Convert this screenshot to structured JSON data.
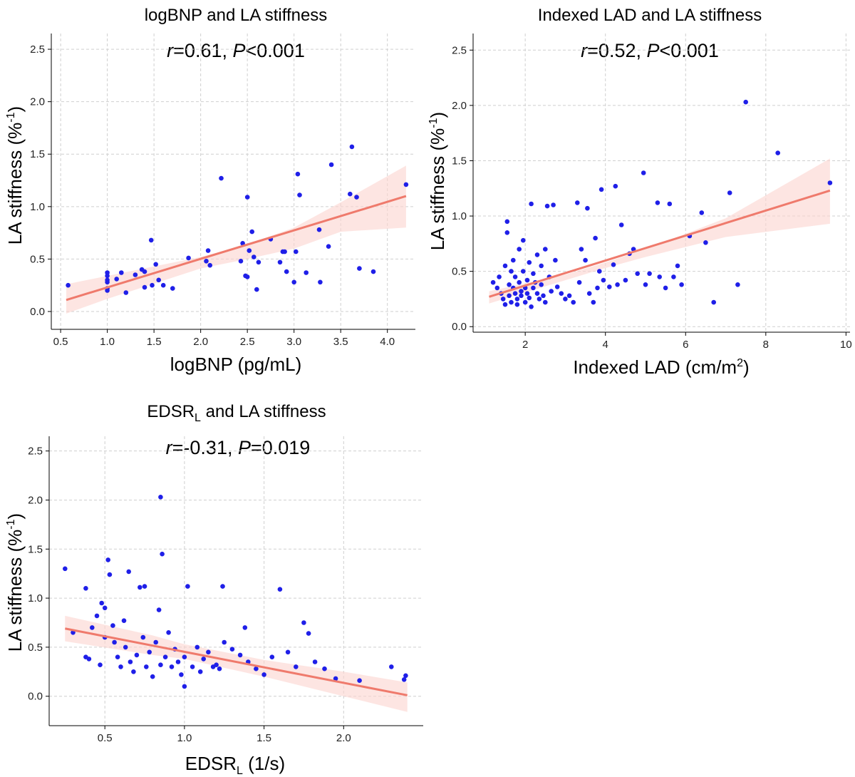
{
  "chart_data": [
    {
      "type": "scatter",
      "title": "logBNP and LA stiffness",
      "stat_r": "r",
      "stat_r_value": "=0.61, ",
      "stat_p": "P",
      "stat_p_value": "<0.001",
      "xlabel": "logBNP (pg/mL)",
      "ylabel_main": "LA stiffness (%",
      "ylabel_sup": "-1",
      "ylabel_end": ")",
      "xlim": [
        0.4,
        4.3
      ],
      "ylim": [
        -0.17,
        2.65
      ],
      "xticks": [
        0.5,
        1.0,
        1.5,
        2.0,
        2.5,
        3.0,
        3.5,
        4.0
      ],
      "xtick_labels": [
        "0.5",
        "1.0",
        "1.5",
        "2.0",
        "2.5",
        "3.0",
        "3.5",
        "4.0"
      ],
      "yticks": [
        0.0,
        0.5,
        1.0,
        1.5,
        2.0,
        2.5
      ],
      "ytick_labels": [
        "0.0",
        "0.5",
        "1.0",
        "1.5",
        "2.0",
        "2.5"
      ],
      "grid": true,
      "fit": {
        "x0": 0.56,
        "y0": 0.11,
        "x1": 4.2,
        "y1": 1.1
      },
      "band": {
        "upper": [
          [
            0.56,
            0.26
          ],
          [
            2.0,
            0.52
          ],
          [
            2.5,
            0.64
          ],
          [
            3.0,
            0.8
          ],
          [
            3.5,
            1.04
          ],
          [
            4.2,
            1.39
          ]
        ],
        "lower": [
          [
            0.56,
            -0.02
          ],
          [
            1.0,
            0.12
          ],
          [
            2.0,
            0.41
          ],
          [
            2.5,
            0.5
          ],
          [
            3.0,
            0.6
          ],
          [
            3.5,
            0.76
          ],
          [
            4.2,
            0.8
          ]
        ]
      },
      "points": [
        [
          0.58,
          0.25
        ],
        [
          1.0,
          0.37
        ],
        [
          1.0,
          0.34
        ],
        [
          1.0,
          0.3
        ],
        [
          1.0,
          0.28
        ],
        [
          1.0,
          0.2
        ],
        [
          1.0,
          0.22
        ],
        [
          1.1,
          0.31
        ],
        [
          1.15,
          0.37
        ],
        [
          1.2,
          0.18
        ],
        [
          1.3,
          0.35
        ],
        [
          1.37,
          0.4
        ],
        [
          1.4,
          0.38
        ],
        [
          1.4,
          0.23
        ],
        [
          1.47,
          0.68
        ],
        [
          1.48,
          0.25
        ],
        [
          1.52,
          0.45
        ],
        [
          1.55,
          0.3
        ],
        [
          1.6,
          0.25
        ],
        [
          1.7,
          0.22
        ],
        [
          1.87,
          0.51
        ],
        [
          2.06,
          0.48
        ],
        [
          2.08,
          0.58
        ],
        [
          2.1,
          0.44
        ],
        [
          2.22,
          1.27
        ],
        [
          2.43,
          0.48
        ],
        [
          2.45,
          0.65
        ],
        [
          2.48,
          0.34
        ],
        [
          2.5,
          1.09
        ],
        [
          2.5,
          0.33
        ],
        [
          2.52,
          0.58
        ],
        [
          2.55,
          0.76
        ],
        [
          2.57,
          0.52
        ],
        [
          2.6,
          0.21
        ],
        [
          2.62,
          0.47
        ],
        [
          2.75,
          0.69
        ],
        [
          2.85,
          0.47
        ],
        [
          2.88,
          0.57
        ],
        [
          2.9,
          0.57
        ],
        [
          2.92,
          0.38
        ],
        [
          3.0,
          0.28
        ],
        [
          3.02,
          0.57
        ],
        [
          3.04,
          1.31
        ],
        [
          3.06,
          1.11
        ],
        [
          3.13,
          0.37
        ],
        [
          3.27,
          0.78
        ],
        [
          3.28,
          0.28
        ],
        [
          3.37,
          0.62
        ],
        [
          3.4,
          1.4
        ],
        [
          3.6,
          1.12
        ],
        [
          3.62,
          1.57
        ],
        [
          3.67,
          1.09
        ],
        [
          3.7,
          0.41
        ],
        [
          3.85,
          0.38
        ],
        [
          4.2,
          1.21
        ]
      ]
    },
    {
      "type": "scatter",
      "title": "Indexed LAD and LA stiffness",
      "stat_r": "r",
      "stat_r_value": "=0.52, ",
      "stat_p": "P",
      "stat_p_value": "<0.001",
      "xlabel": "Indexed LAD (cm/m",
      "xlabel_sup": "2",
      "xlabel_end": ")",
      "ylabel_main": "LA stiffness (%",
      "ylabel_sup": "-1",
      "ylabel_end": ")",
      "xlim": [
        0.7,
        10.1
      ],
      "ylim": [
        -0.05,
        2.65
      ],
      "xticks": [
        2,
        4,
        6,
        8,
        10
      ],
      "xtick_labels": [
        "2",
        "4",
        "6",
        "8",
        "10"
      ],
      "yticks": [
        0.0,
        0.5,
        1.0,
        1.5,
        2.0,
        2.5
      ],
      "ytick_labels": [
        "0.0",
        "0.5",
        "1.0",
        "1.5",
        "2.0",
        "2.5"
      ],
      "grid": true,
      "fit": {
        "x0": 1.1,
        "y0": 0.27,
        "x1": 9.6,
        "y1": 1.23
      },
      "band": {
        "upper": [
          [
            1.1,
            0.32
          ],
          [
            3.0,
            0.47
          ],
          [
            4.0,
            0.58
          ],
          [
            5.0,
            0.7
          ],
          [
            7.0,
            0.98
          ],
          [
            9.6,
            1.52
          ]
        ],
        "lower": [
          [
            1.1,
            0.21
          ],
          [
            3.0,
            0.42
          ],
          [
            4.0,
            0.53
          ],
          [
            5.0,
            0.63
          ],
          [
            7.0,
            0.81
          ],
          [
            9.6,
            0.93
          ]
        ]
      },
      "points": [
        [
          1.2,
          0.4
        ],
        [
          1.3,
          0.35
        ],
        [
          1.35,
          0.45
        ],
        [
          1.4,
          0.3
        ],
        [
          1.45,
          0.25
        ],
        [
          1.5,
          0.2
        ],
        [
          1.5,
          0.55
        ],
        [
          1.55,
          0.85
        ],
        [
          1.55,
          0.95
        ],
        [
          1.6,
          0.38
        ],
        [
          1.6,
          0.28
        ],
        [
          1.65,
          0.5
        ],
        [
          1.65,
          0.22
        ],
        [
          1.7,
          0.6
        ],
        [
          1.7,
          0.35
        ],
        [
          1.75,
          0.3
        ],
        [
          1.75,
          0.45
        ],
        [
          1.8,
          0.25
        ],
        [
          1.8,
          0.2
        ],
        [
          1.85,
          0.4
        ],
        [
          1.85,
          0.7
        ],
        [
          1.9,
          0.32
        ],
        [
          1.9,
          0.28
        ],
        [
          1.95,
          0.78
        ],
        [
          1.95,
          0.5
        ],
        [
          2.0,
          0.35
        ],
        [
          2.0,
          0.22
        ],
        [
          2.05,
          0.3
        ],
        [
          2.05,
          0.42
        ],
        [
          2.1,
          0.26
        ],
        [
          2.1,
          0.58
        ],
        [
          2.15,
          1.11
        ],
        [
          2.15,
          0.18
        ],
        [
          2.2,
          0.35
        ],
        [
          2.2,
          0.48
        ],
        [
          2.25,
          0.4
        ],
        [
          2.3,
          0.3
        ],
        [
          2.3,
          0.65
        ],
        [
          2.35,
          0.25
        ],
        [
          2.4,
          0.38
        ],
        [
          2.4,
          0.55
        ],
        [
          2.45,
          0.28
        ],
        [
          2.5,
          0.7
        ],
        [
          2.5,
          0.22
        ],
        [
          2.55,
          1.09
        ],
        [
          2.6,
          0.45
        ],
        [
          2.65,
          0.32
        ],
        [
          2.7,
          1.1
        ],
        [
          2.75,
          0.6
        ],
        [
          2.8,
          0.36
        ],
        [
          2.9,
          0.3
        ],
        [
          3.0,
          0.25
        ],
        [
          3.1,
          0.28
        ],
        [
          3.2,
          0.22
        ],
        [
          3.3,
          1.12
        ],
        [
          3.35,
          0.4
        ],
        [
          3.4,
          0.7
        ],
        [
          3.5,
          0.6
        ],
        [
          3.55,
          1.07
        ],
        [
          3.6,
          0.3
        ],
        [
          3.7,
          0.22
        ],
        [
          3.75,
          0.8
        ],
        [
          3.8,
          0.35
        ],
        [
          3.85,
          0.5
        ],
        [
          3.9,
          1.24
        ],
        [
          3.95,
          0.42
        ],
        [
          4.1,
          0.36
        ],
        [
          4.2,
          0.56
        ],
        [
          4.25,
          1.27
        ],
        [
          4.3,
          0.38
        ],
        [
          4.4,
          0.92
        ],
        [
          4.5,
          0.42
        ],
        [
          4.6,
          0.66
        ],
        [
          4.7,
          0.7
        ],
        [
          4.8,
          0.48
        ],
        [
          4.95,
          1.39
        ],
        [
          5.0,
          0.38
        ],
        [
          5.1,
          0.48
        ],
        [
          5.3,
          1.12
        ],
        [
          5.35,
          0.45
        ],
        [
          5.5,
          0.35
        ],
        [
          5.6,
          1.11
        ],
        [
          5.7,
          0.45
        ],
        [
          5.8,
          0.55
        ],
        [
          5.9,
          0.38
        ],
        [
          6.1,
          0.82
        ],
        [
          6.4,
          1.03
        ],
        [
          6.5,
          0.76
        ],
        [
          6.7,
          0.22
        ],
        [
          7.1,
          1.21
        ],
        [
          7.3,
          0.38
        ],
        [
          7.5,
          2.03
        ],
        [
          8.3,
          1.57
        ],
        [
          9.6,
          1.3
        ]
      ]
    },
    {
      "type": "scatter",
      "title": "EDSR",
      "title_sub": "L",
      "title_end": " and LA stiffness",
      "stat_r": "r",
      "stat_r_value": "=-0.31, ",
      "stat_p": "P",
      "stat_p_value": "=0.019",
      "xlabel": "EDSR",
      "xlabel_sub": "L",
      "xlabel_end": " (1/s)",
      "ylabel_main": "LA stiffness (%",
      "ylabel_sup": "-1",
      "ylabel_end": ")",
      "xlim": [
        0.15,
        2.5
      ],
      "ylim": [
        -0.3,
        2.65
      ],
      "xticks": [
        0.5,
        1.0,
        1.5,
        2.0
      ],
      "xtick_labels": [
        "0.5",
        "1.0",
        "1.5",
        "2.0"
      ],
      "yticks": [
        0.0,
        0.5,
        1.0,
        1.5,
        2.0,
        2.5
      ],
      "ytick_labels": [
        "0.0",
        "0.5",
        "1.0",
        "1.5",
        "2.0",
        "2.5"
      ],
      "grid": true,
      "fit": {
        "x0": 0.25,
        "y0": 0.69,
        "x1": 2.4,
        "y1": 0.01
      },
      "band": {
        "upper": [
          [
            0.25,
            0.82
          ],
          [
            0.8,
            0.62
          ],
          [
            1.0,
            0.53
          ],
          [
            1.5,
            0.37
          ],
          [
            2.0,
            0.25
          ],
          [
            2.4,
            0.14
          ]
        ],
        "lower": [
          [
            0.25,
            0.56
          ],
          [
            0.8,
            0.42
          ],
          [
            1.0,
            0.38
          ],
          [
            1.5,
            0.2
          ],
          [
            2.0,
            0.0
          ],
          [
            2.4,
            -0.16
          ]
        ]
      },
      "points": [
        [
          0.25,
          1.3
        ],
        [
          0.3,
          0.65
        ],
        [
          0.38,
          1.1
        ],
        [
          0.38,
          0.4
        ],
        [
          0.4,
          0.38
        ],
        [
          0.42,
          0.7
        ],
        [
          0.45,
          0.82
        ],
        [
          0.47,
          0.32
        ],
        [
          0.48,
          0.95
        ],
        [
          0.5,
          0.9
        ],
        [
          0.5,
          0.6
        ],
        [
          0.52,
          1.39
        ],
        [
          0.53,
          1.24
        ],
        [
          0.55,
          0.72
        ],
        [
          0.56,
          0.55
        ],
        [
          0.58,
          0.4
        ],
        [
          0.6,
          0.3
        ],
        [
          0.62,
          0.77
        ],
        [
          0.63,
          0.5
        ],
        [
          0.65,
          1.27
        ],
        [
          0.66,
          0.35
        ],
        [
          0.68,
          0.25
        ],
        [
          0.7,
          0.42
        ],
        [
          0.72,
          1.11
        ],
        [
          0.74,
          0.6
        ],
        [
          0.75,
          1.12
        ],
        [
          0.76,
          0.3
        ],
        [
          0.78,
          0.45
        ],
        [
          0.8,
          0.2
        ],
        [
          0.82,
          0.55
        ],
        [
          0.84,
          0.88
        ],
        [
          0.85,
          2.03
        ],
        [
          0.85,
          0.32
        ],
        [
          0.86,
          1.45
        ],
        [
          0.88,
          0.4
        ],
        [
          0.9,
          0.65
        ],
        [
          0.92,
          0.3
        ],
        [
          0.94,
          0.48
        ],
        [
          0.96,
          0.35
        ],
        [
          0.98,
          0.22
        ],
        [
          1.0,
          0.4
        ],
        [
          1.0,
          0.1
        ],
        [
          1.02,
          1.12
        ],
        [
          1.05,
          0.3
        ],
        [
          1.08,
          0.5
        ],
        [
          1.1,
          0.25
        ],
        [
          1.12,
          0.38
        ],
        [
          1.15,
          0.45
        ],
        [
          1.18,
          0.3
        ],
        [
          1.2,
          0.32
        ],
        [
          1.22,
          0.28
        ],
        [
          1.24,
          1.12
        ],
        [
          1.25,
          0.55
        ],
        [
          1.3,
          0.48
        ],
        [
          1.35,
          0.42
        ],
        [
          1.38,
          0.7
        ],
        [
          1.4,
          0.35
        ],
        [
          1.45,
          0.28
        ],
        [
          1.5,
          0.22
        ],
        [
          1.55,
          0.4
        ],
        [
          1.6,
          1.09
        ],
        [
          1.65,
          0.45
        ],
        [
          1.7,
          0.3
        ],
        [
          1.75,
          0.75
        ],
        [
          1.78,
          0.64
        ],
        [
          1.82,
          0.35
        ],
        [
          1.88,
          0.28
        ],
        [
          1.95,
          0.18
        ],
        [
          2.1,
          0.16
        ],
        [
          2.3,
          0.3
        ],
        [
          2.38,
          0.17
        ],
        [
          2.39,
          0.21
        ]
      ]
    }
  ]
}
